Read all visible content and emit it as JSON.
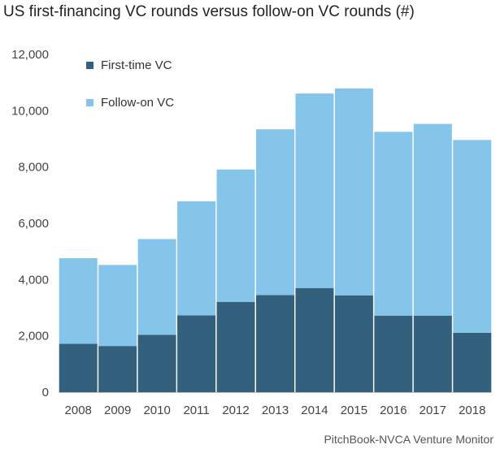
{
  "chart_data": {
    "type": "bar",
    "stacked": true,
    "title": "US first-financing VC rounds versus follow-on VC rounds (#)",
    "source": "PitchBook-NVCA Venture Monitor",
    "categories": [
      "2008",
      "2009",
      "2010",
      "2011",
      "2012",
      "2013",
      "2014",
      "2015",
      "2016",
      "2017",
      "2018"
    ],
    "series": [
      {
        "name": "First-time VC",
        "color": "#33607d",
        "values": [
          1720,
          1640,
          2040,
          2730,
          3210,
          3450,
          3700,
          3440,
          2720,
          2720,
          2110
        ]
      },
      {
        "name": "Follow-on VC",
        "color": "#85c5ea",
        "values": [
          3040,
          2880,
          3400,
          4050,
          4700,
          5890,
          6910,
          7350,
          6530,
          6810,
          6850
        ]
      }
    ],
    "ylim": [
      0,
      12000
    ],
    "yticks": [
      "0",
      "2,000",
      "4,000",
      "6,000",
      "8,000",
      "10,000",
      "12,000"
    ],
    "ytick_values": [
      0,
      2000,
      4000,
      6000,
      8000,
      10000,
      12000
    ],
    "grid": false,
    "legend": "top-left"
  }
}
